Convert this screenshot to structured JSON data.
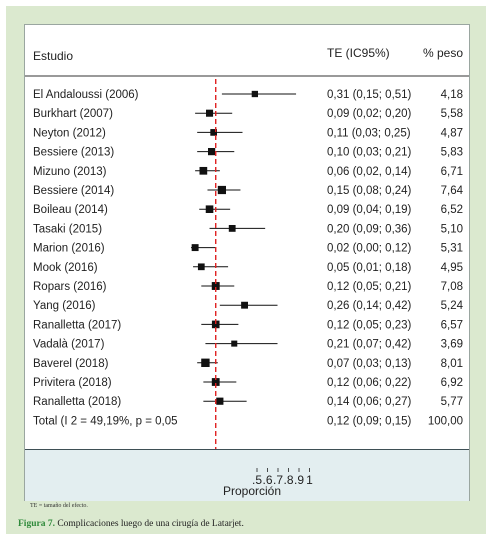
{
  "chart_data": {
    "type": "forest",
    "headers": {
      "study": "Estudio",
      "estimate": "TE (IC95%)",
      "weight": "% peso"
    },
    "studies": [
      {
        "label": "El Andaloussi (2006)",
        "te": 0.31,
        "lo": 0.15,
        "hi": 0.51,
        "ci_text": "0,31 (0,15; 0,51)",
        "weight": "4,18"
      },
      {
        "label": "Burkhart (2007)",
        "te": 0.09,
        "lo": 0.02,
        "hi": 0.2,
        "ci_text": "0,09 (0,02; 0,20)",
        "weight": "5,58"
      },
      {
        "label": "Neyton (2012)",
        "te": 0.11,
        "lo": 0.03,
        "hi": 0.25,
        "ci_text": "0,11 (0,03; 0,25)",
        "weight": "4,87"
      },
      {
        "label": "Bessiere (2013)",
        "te": 0.1,
        "lo": 0.03,
        "hi": 0.21,
        "ci_text": "0,10 (0,03; 0,21)",
        "weight": "5,83"
      },
      {
        "label": "Mizuno (2013)",
        "te": 0.06,
        "lo": 0.02,
        "hi": 0.14,
        "ci_text": "0,06 (0,02, 0,14)",
        "weight": "6,71"
      },
      {
        "label": "Bessiere (2014)",
        "te": 0.15,
        "lo": 0.08,
        "hi": 0.24,
        "ci_text": "0,15 (0,08; 0,24)",
        "weight": "7,64"
      },
      {
        "label": "Boileau (2014)",
        "te": 0.09,
        "lo": 0.04,
        "hi": 0.19,
        "ci_text": "0,09 (0,04; 0,19)",
        "weight": "6,52"
      },
      {
        "label": "Tasaki  (2015)",
        "te": 0.2,
        "lo": 0.09,
        "hi": 0.36,
        "ci_text": "0,20 (0,09; 0,36)",
        "weight": "5,10"
      },
      {
        "label": "Marion (2016)",
        "te": 0.02,
        "lo": 0.0,
        "hi": 0.12,
        "ci_text": "0,02 (0,00; 0,12)",
        "weight": "5,31"
      },
      {
        "label": "Mook (2016)",
        "te": 0.05,
        "lo": 0.01,
        "hi": 0.18,
        "ci_text": "0,05 (0,01; 0,18)",
        "weight": "4,95"
      },
      {
        "label": "Ropars (2016)",
        "te": 0.12,
        "lo": 0.05,
        "hi": 0.21,
        "ci_text": "0,12 (0,05; 0,21)",
        "weight": "7,08"
      },
      {
        "label": "Yang (2016)",
        "te": 0.26,
        "lo": 0.14,
        "hi": 0.42,
        "ci_text": "0,26 (0,14; 0,42)",
        "weight": "5,24"
      },
      {
        "label": "Ranalletta (2017)",
        "te": 0.12,
        "lo": 0.05,
        "hi": 0.23,
        "ci_text": "0,12 (0,05; 0,23)",
        "weight": "6,57"
      },
      {
        "label": "Vadalà (2017)",
        "te": 0.21,
        "lo": 0.07,
        "hi": 0.42,
        "ci_text": "0,21 (0,07; 0,42)",
        "weight": "3,69"
      },
      {
        "label": "Baverel (2018)",
        "te": 0.07,
        "lo": 0.03,
        "hi": 0.13,
        "ci_text": "0,07 (0,03; 0,13)",
        "weight": "8,01"
      },
      {
        "label": "Privitera (2018)",
        "te": 0.12,
        "lo": 0.06,
        "hi": 0.22,
        "ci_text": "0,12 (0,06; 0,22)",
        "weight": "6,92"
      },
      {
        "label": "Ranalletta (2018)",
        "te": 0.14,
        "lo": 0.06,
        "hi": 0.27,
        "ci_text": "0,14 (0,06; 0,27)",
        "weight": "5,77"
      }
    ],
    "total": {
      "label": "Total (I 2 = 49,19%, p = 0,05",
      "te": 0.12,
      "lo": 0.09,
      "hi": 0.15,
      "ci_text": "0,12 (0,09; 0,15)",
      "weight": "100,00"
    },
    "reference_line": 0.12,
    "xlabel": "Proporción",
    "tick_labels": [
      ".5",
      ".6",
      ".7",
      ".8",
      ".9",
      "1"
    ],
    "colors": {
      "marker": "#111111",
      "reference": "#e02020",
      "frame": "#dbe9cf",
      "axis_band": "#e3eef0",
      "figure_label": "#2f8a3b"
    }
  },
  "footnote": "TE = tamaño del efecto.",
  "caption": {
    "figure_label": "Figura 7.",
    "text": " Complicaciones luego de una cirugía de Latarjet."
  }
}
